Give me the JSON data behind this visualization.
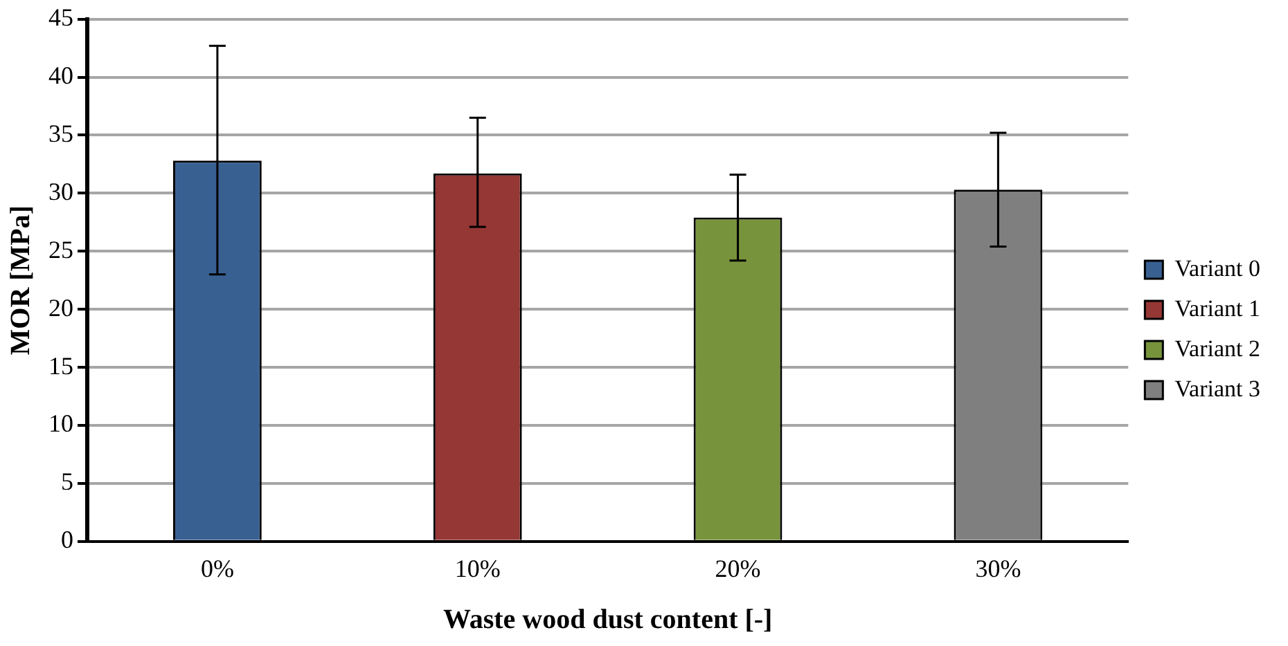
{
  "chart_data": {
    "type": "bar",
    "xlabel": "Waste wood dust content [-]",
    "ylabel": "MOR [MPa]",
    "categories": [
      "0%",
      "10%",
      "20%",
      "30%"
    ],
    "series": [
      {
        "name": "Variant 0",
        "color": "#386192",
        "values": [
          32.8,
          null,
          null,
          null
        ],
        "errors": [
          [
            23.0,
            42.7
          ],
          null,
          null,
          null
        ]
      },
      {
        "name": "Variant 1",
        "color": "#953735",
        "values": [
          null,
          31.7,
          null,
          null
        ],
        "errors": [
          null,
          [
            27.1,
            36.5
          ],
          null,
          null
        ]
      },
      {
        "name": "Variant 2",
        "color": "#77933c",
        "values": [
          null,
          null,
          27.9,
          null
        ],
        "errors": [
          null,
          null,
          [
            24.2,
            31.6
          ],
          null
        ]
      },
      {
        "name": "Variant 3",
        "color": "#7f7f7f",
        "values": [
          null,
          null,
          null,
          30.3
        ],
        "errors": [
          null,
          null,
          null,
          [
            25.4,
            35.2
          ]
        ]
      }
    ],
    "ylim": [
      0,
      45
    ],
    "yticks": [
      0,
      5,
      10,
      15,
      20,
      25,
      30,
      35,
      40,
      45
    ],
    "grid": "y",
    "legend": "right"
  }
}
